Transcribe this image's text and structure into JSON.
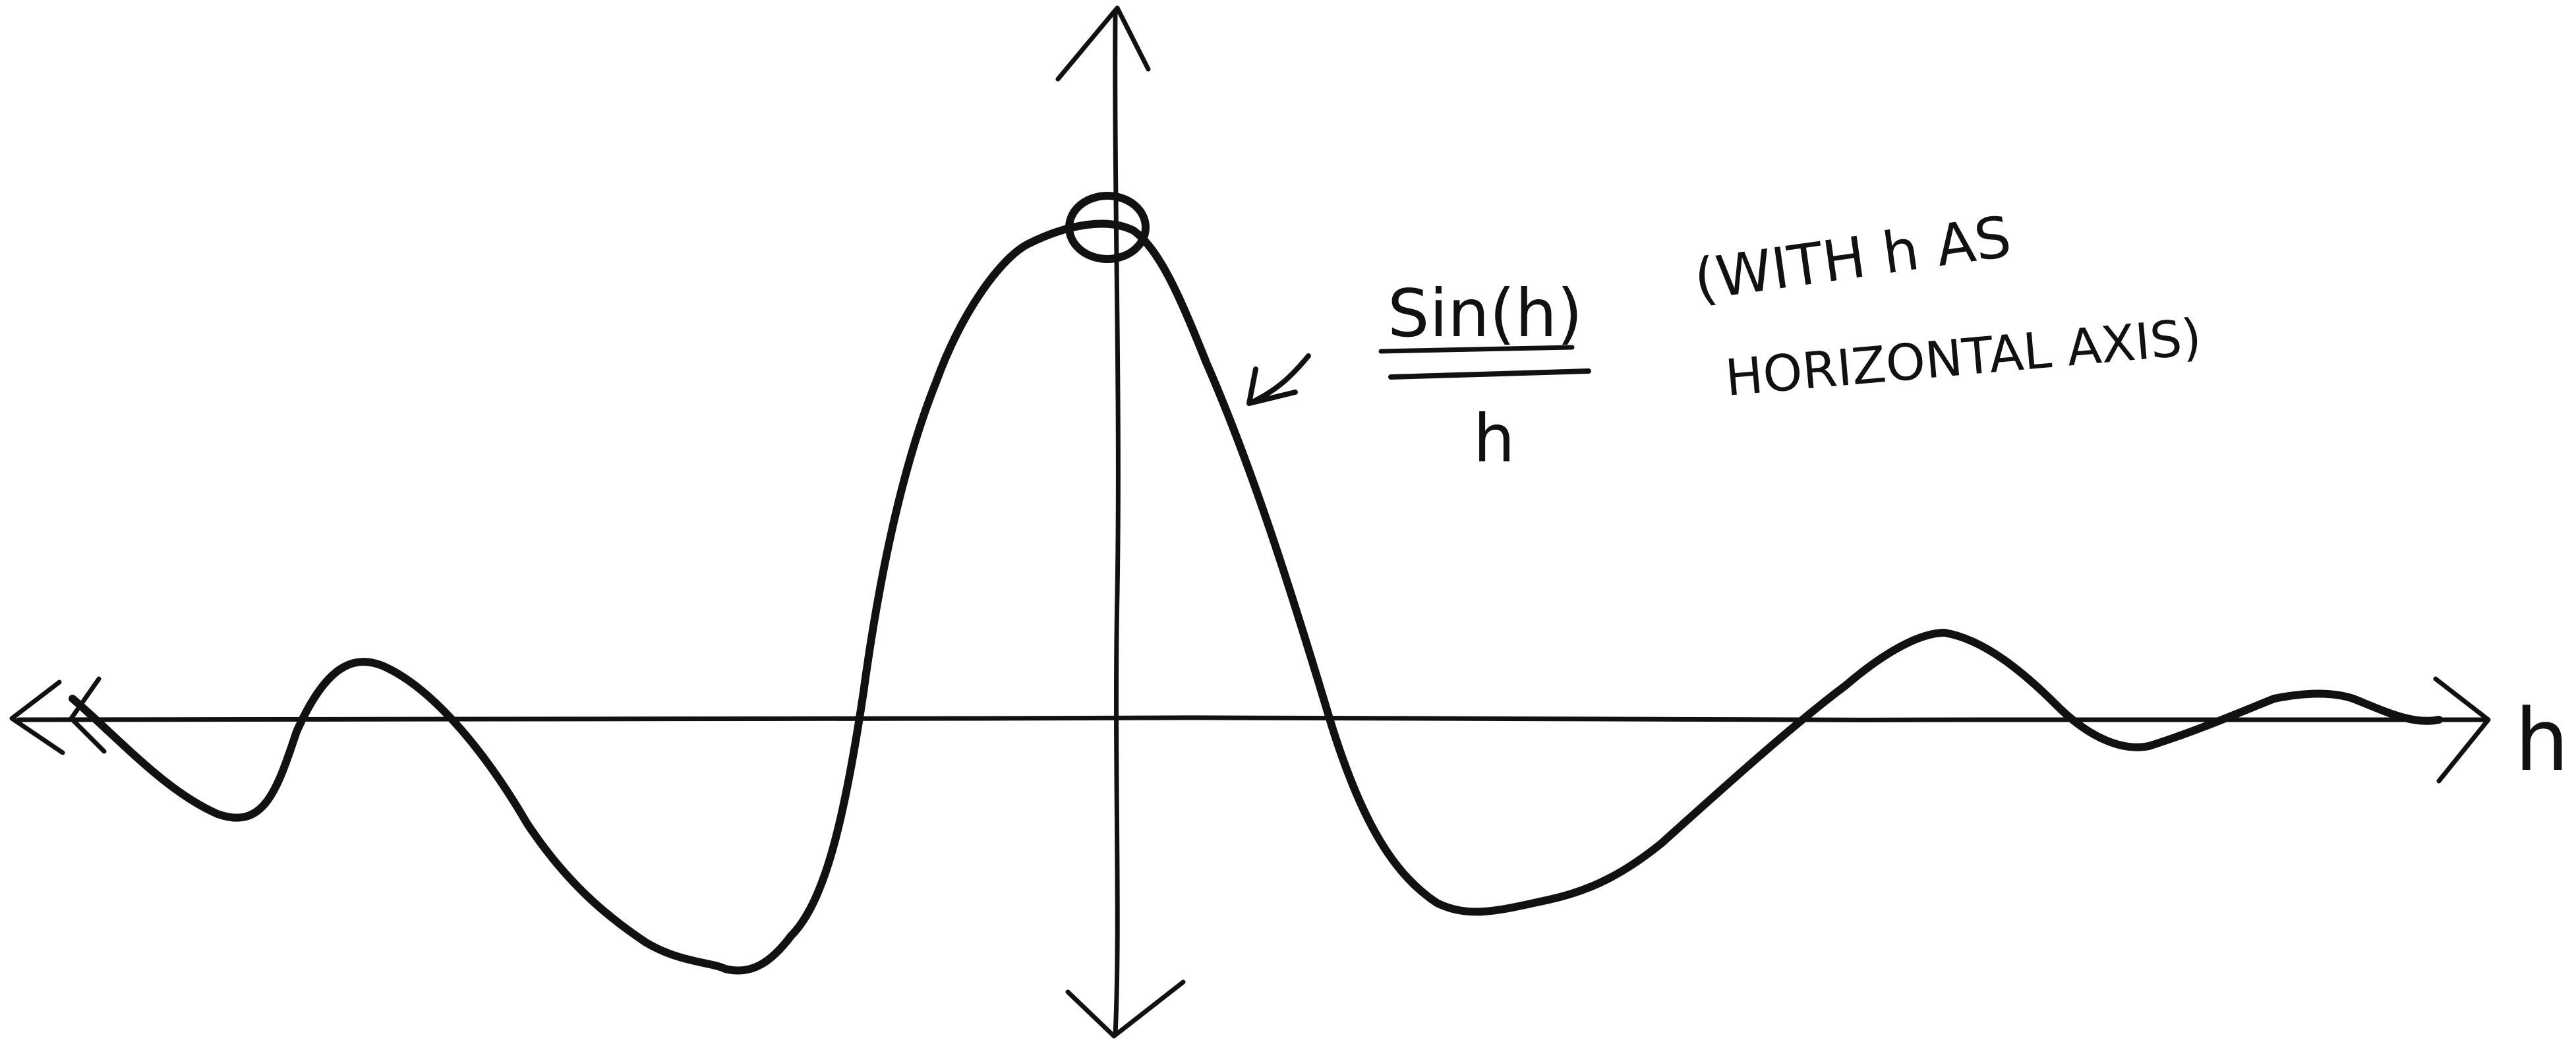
{
  "diagram": {
    "function_numerator": "Sin(h)",
    "function_denominator": "h",
    "note_line1": "(WITH h AS",
    "note_line2": "HORIZONTAL AXIS)",
    "axis_label": "h",
    "ink_color": "#111111",
    "background_color": "#ffffff"
  }
}
